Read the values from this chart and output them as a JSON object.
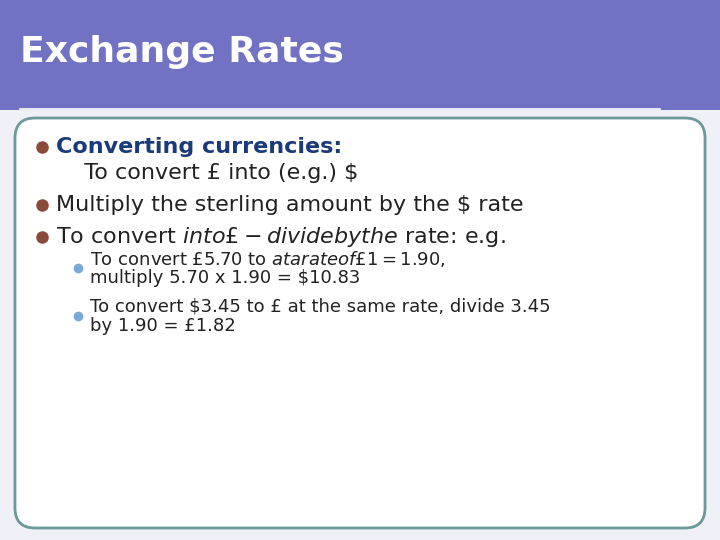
{
  "title": "Exchange Rates",
  "title_bg_color": "#7272C4",
  "title_text_color": "#FFFFFF",
  "slide_bg_color": "#F0F0F8",
  "content_bg_color": "#FFFFFF",
  "content_border_color": "#6A9A9A",
  "bullet1_text": "Converting currencies:",
  "bullet1_color": "#1A3A7A",
  "bullet1_dot_color": "#8B4A3A",
  "sub_bullet1": "  To convert £ into (e.g.) $",
  "bullet2": "Multiply the sterling amount by the $ rate",
  "bullet2_dot_color": "#8B4A3A",
  "bullet3": "To convert $ into £ - divide by the $ rate: e.g.",
  "bullet3_dot_color": "#8B4A3A",
  "sub_bullet2_line1": "To convert £5.70 to $ at a rate of £1 = $1.90,",
  "sub_bullet2_line2": "multiply 5.70 x 1.90 = $10.83",
  "sub_bullet2_dot_color": "#7AA8D8",
  "sub_bullet3_line1": "To convert $3.45 to £ at the same rate, divide 3.45",
  "sub_bullet3_line2": "by 1.90 = £1.82",
  "sub_bullet3_dot_color": "#7AA8D8",
  "main_text_color": "#222222",
  "sub_text_color": "#222222",
  "title_fontsize": 26,
  "main_fontsize": 16,
  "sub_fontsize": 13
}
